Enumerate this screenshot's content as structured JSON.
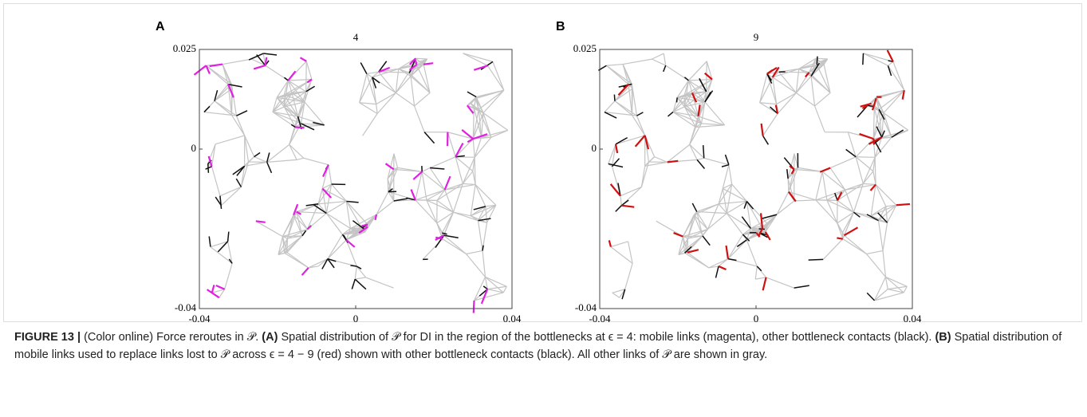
{
  "chart_data": [
    {
      "type": "network",
      "panel_label": "A",
      "title": "4",
      "xlim": [
        -0.04,
        0.04
      ],
      "ylim": [
        -0.04,
        0.025
      ],
      "xticks": [
        -0.04,
        0,
        0.04
      ],
      "yticks": [
        -0.04,
        0,
        0.025
      ]
    },
    {
      "type": "network",
      "panel_label": "B",
      "title": "9",
      "xlim": [
        -0.04,
        0.04
      ],
      "ylim": [
        -0.04,
        0.025
      ],
      "xticks": [
        -0.04,
        0,
        0.04
      ],
      "yticks": [
        -0.04,
        0,
        0.025
      ]
    }
  ],
  "caption": {
    "label": "FIGURE 13 |",
    "intro": "(Color online) Force reroutes in 𝒫.",
    "a_label": "(A)",
    "a_text": "Spatial distribution of 𝒫 for DI in the region of the bottlenecks at ϵ = 4: mobile links (magenta), other bottleneck contacts (black).",
    "b_label": "(B)",
    "b_text": "Spatial distribution of mobile links used to replace links lost to 𝒫 across ϵ = 4 − 9 (red) shown with other bottleneck contacts (black). All other links of 𝒫 are shown in gray."
  }
}
